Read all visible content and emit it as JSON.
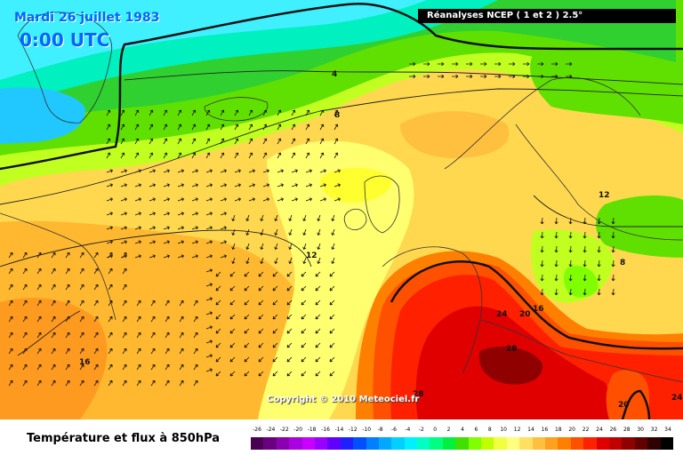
{
  "header": {
    "date": "Mardi 26 juillet 1983",
    "time": "0:00 UTC",
    "source": "Réanalyses NCEP ( 1 et 2 ) 2.5°"
  },
  "copyright": "Copyright © 2010 Meteociel.fr",
  "legend": {
    "title": "Température et flux à 850hPa",
    "ticks": [
      "-26",
      "-24",
      "-22",
      "-20",
      "-18",
      "-16",
      "-14",
      "-12",
      "-10",
      "-8",
      "-6",
      "-4",
      "-2",
      "0",
      "2",
      "4",
      "6",
      "8",
      "10",
      "12",
      "14",
      "16",
      "18",
      "20",
      "22",
      "24",
      "26",
      "28",
      "30",
      "32",
      "34"
    ],
    "colors": [
      "#4a0050",
      "#6a0080",
      "#8a00b0",
      "#aa00e0",
      "#c800ff",
      "#9a00ff",
      "#6000ff",
      "#2020ff",
      "#0050ff",
      "#0080ff",
      "#00a8ff",
      "#00d0ff",
      "#00f0ff",
      "#00ffc0",
      "#00ff80",
      "#00f040",
      "#40e000",
      "#80ff00",
      "#c0ff00",
      "#f0ff40",
      "#ffff80",
      "#ffe060",
      "#ffc040",
      "#ffa020",
      "#ff8000",
      "#ff5000",
      "#ff2000",
      "#e00000",
      "#c00000",
      "#900000",
      "#600000",
      "#300000",
      "#000000"
    ]
  },
  "isotherm_labels": [
    {
      "text": "4"
    },
    {
      "text": "8"
    },
    {
      "text": "12"
    },
    {
      "text": "12"
    },
    {
      "text": "16"
    },
    {
      "text": "8"
    },
    {
      "text": "24"
    },
    {
      "text": "20"
    },
    {
      "text": "16"
    },
    {
      "text": "28"
    },
    {
      "text": "28"
    },
    {
      "text": "20"
    },
    {
      "text": "24"
    }
  ]
}
